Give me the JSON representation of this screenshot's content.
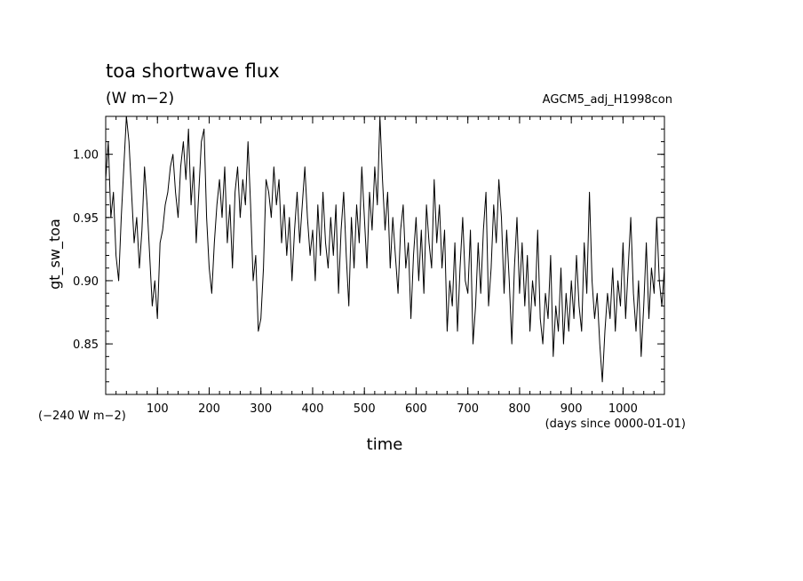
{
  "chart_data": {
    "type": "line",
    "title": "toa shortwave flux",
    "units": "(W m−2)",
    "run_label": "AGCM5_adj_H1998con",
    "offset_label": "(−240 W m−2)",
    "xlabel": "time",
    "x_units": "(days since 0000-01-01)",
    "ylabel": "gt_sw_toa",
    "xlim": [
      0,
      1080
    ],
    "ylim": [
      0.81,
      1.03
    ],
    "xticks": [
      100,
      200,
      300,
      400,
      500,
      600,
      700,
      800,
      900,
      1000
    ],
    "xtick_labels": [
      "100",
      "200",
      "300",
      "400",
      "500",
      "600",
      "700",
      "800",
      "900",
      "1000"
    ],
    "yticks": [
      0.85,
      0.9,
      0.95,
      1.0
    ],
    "ytick_labels": [
      "0.85",
      "0.90",
      "0.95",
      "1.00"
    ],
    "grid": false,
    "series": [
      {
        "x": [
          0,
          5,
          10,
          15,
          20,
          25,
          30,
          35,
          40,
          45,
          50,
          55,
          60,
          65,
          70,
          75,
          80,
          85,
          90,
          95,
          100,
          105,
          110,
          115,
          120,
          125,
          130,
          135,
          140,
          145,
          150,
          155,
          160,
          165,
          170,
          175,
          180,
          185,
          190,
          195,
          200,
          205,
          210,
          215,
          220,
          225,
          230,
          235,
          240,
          245,
          250,
          255,
          260,
          265,
          270,
          275,
          280,
          285,
          290,
          295,
          300,
          305,
          310,
          315,
          320,
          325,
          330,
          335,
          340,
          345,
          350,
          355,
          360,
          365,
          370,
          375,
          380,
          385,
          390,
          395,
          400,
          405,
          410,
          415,
          420,
          425,
          430,
          435,
          440,
          445,
          450,
          455,
          460,
          465,
          470,
          475,
          480,
          485,
          490,
          495,
          500,
          505,
          510,
          515,
          520,
          525,
          530,
          535,
          540,
          545,
          550,
          555,
          560,
          565,
          570,
          575,
          580,
          585,
          590,
          595,
          600,
          605,
          610,
          615,
          620,
          625,
          630,
          635,
          640,
          645,
          650,
          655,
          660,
          665,
          670,
          675,
          680,
          685,
          690,
          695,
          700,
          705,
          710,
          715,
          720,
          725,
          730,
          735,
          740,
          745,
          750,
          755,
          760,
          765,
          770,
          775,
          780,
          785,
          790,
          795,
          800,
          805,
          810,
          815,
          820,
          825,
          830,
          835,
          840,
          845,
          850,
          855,
          860,
          865,
          870,
          875,
          880,
          885,
          890,
          895,
          900,
          905,
          910,
          915,
          920,
          925,
          930,
          935,
          940,
          945,
          950,
          955,
          960,
          965,
          970,
          975,
          980,
          985,
          990,
          995,
          1000,
          1005,
          1010,
          1015,
          1020,
          1025,
          1030,
          1035,
          1040,
          1045,
          1050,
          1055,
          1060,
          1065,
          1070,
          1075,
          1080
        ],
        "y": [
          0.98,
          1.01,
          0.95,
          0.97,
          0.92,
          0.9,
          0.95,
          0.99,
          1.03,
          1.01,
          0.97,
          0.93,
          0.95,
          0.91,
          0.94,
          0.99,
          0.96,
          0.92,
          0.88,
          0.9,
          0.87,
          0.93,
          0.94,
          0.96,
          0.97,
          0.99,
          1.0,
          0.97,
          0.95,
          0.99,
          1.01,
          0.98,
          1.02,
          0.96,
          0.99,
          0.93,
          0.97,
          1.01,
          1.02,
          0.95,
          0.91,
          0.89,
          0.93,
          0.96,
          0.98,
          0.95,
          0.99,
          0.93,
          0.96,
          0.91,
          0.97,
          0.99,
          0.95,
          0.98,
          0.96,
          1.01,
          0.96,
          0.9,
          0.92,
          0.86,
          0.87,
          0.91,
          0.98,
          0.97,
          0.95,
          0.99,
          0.96,
          0.98,
          0.93,
          0.96,
          0.92,
          0.95,
          0.9,
          0.94,
          0.97,
          0.93,
          0.96,
          0.99,
          0.95,
          0.92,
          0.94,
          0.9,
          0.96,
          0.92,
          0.97,
          0.93,
          0.91,
          0.95,
          0.92,
          0.96,
          0.89,
          0.94,
          0.97,
          0.92,
          0.88,
          0.95,
          0.91,
          0.96,
          0.93,
          0.99,
          0.95,
          0.91,
          0.97,
          0.94,
          0.99,
          0.96,
          1.03,
          0.98,
          0.94,
          0.97,
          0.91,
          0.95,
          0.92,
          0.89,
          0.94,
          0.96,
          0.91,
          0.93,
          0.87,
          0.92,
          0.95,
          0.9,
          0.94,
          0.89,
          0.96,
          0.93,
          0.91,
          0.98,
          0.93,
          0.96,
          0.91,
          0.94,
          0.86,
          0.9,
          0.88,
          0.93,
          0.86,
          0.91,
          0.95,
          0.9,
          0.89,
          0.94,
          0.85,
          0.88,
          0.93,
          0.89,
          0.94,
          0.97,
          0.88,
          0.91,
          0.96,
          0.93,
          0.98,
          0.95,
          0.89,
          0.94,
          0.9,
          0.85,
          0.91,
          0.95,
          0.89,
          0.93,
          0.88,
          0.92,
          0.86,
          0.9,
          0.88,
          0.94,
          0.87,
          0.85,
          0.89,
          0.87,
          0.92,
          0.84,
          0.88,
          0.86,
          0.91,
          0.85,
          0.89,
          0.86,
          0.9,
          0.87,
          0.92,
          0.88,
          0.86,
          0.93,
          0.89,
          0.97,
          0.9,
          0.87,
          0.89,
          0.85,
          0.82,
          0.86,
          0.89,
          0.87,
          0.91,
          0.86,
          0.9,
          0.88,
          0.93,
          0.87,
          0.91,
          0.95,
          0.89,
          0.86,
          0.9,
          0.84,
          0.88,
          0.93,
          0.87,
          0.91,
          0.89,
          0.95,
          0.9,
          0.88,
          0.91
        ]
      }
    ]
  }
}
